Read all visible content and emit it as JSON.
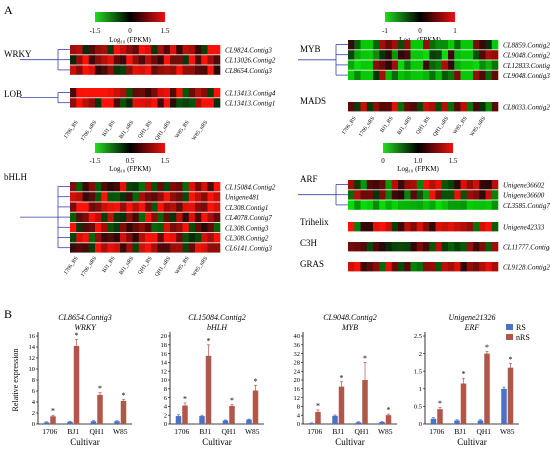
{
  "panel_a": {
    "label": "A",
    "x_labels": [
      "1706_RS",
      "1706_nRS",
      "BJ1_RS",
      "BJ1_nRS",
      "QH1_RS",
      "QH1_nRS",
      "W85_RS",
      "W85_nRS"
    ],
    "color_keys": [
      {
        "ticks": [
          "-1.5",
          "0",
          "1.5"
        ],
        "title": "Log₁₀ (FPKM)",
        "low": "#22cc22",
        "mid": "#000000",
        "high": "#ee1111"
      },
      {
        "ticks": [
          "-1",
          "0",
          "1"
        ],
        "title": "Log₁₀ (FPKM)",
        "low": "#22cc22",
        "mid": "#000000",
        "high": "#ee1111"
      },
      {
        "ticks": [
          "-1.5",
          "0.5",
          "1.5"
        ],
        "title": "Log₁₀ (FPKM)",
        "low": "#22cc22",
        "mid": "#000000",
        "high": "#ee1111"
      },
      {
        "ticks": [
          "0",
          "1.0",
          "1.5"
        ],
        "title": "Log₁₀ (FPKM)",
        "low": "#22cc22",
        "mid": "#000000",
        "high": "#ee1111"
      }
    ],
    "families": [
      {
        "name": "WRKY",
        "genes": [
          "CL9824.Contig3",
          "CL13026.Contig2",
          "CL8654.Contig3"
        ]
      },
      {
        "name": "LOB",
        "genes": [
          "CL13413.Contig4",
          "CL13413.Contig1"
        ]
      },
      {
        "name": "bHLH",
        "genes": [
          "CL15084.Contig2",
          "Unigene481",
          "CL308.Contig1",
          "CL4078.Contig7",
          "CL308.Contig3",
          "CL308.Contig2",
          "CL6141.Contig3"
        ]
      },
      {
        "name": "MYB",
        "genes": [
          "CL8859.Contig2",
          "CL9048.Contig2",
          "CL12833.Contig2",
          "CL9048.Contig3"
        ]
      },
      {
        "name": "MADS",
        "genes": [
          "CL8033.Contig2"
        ]
      },
      {
        "name": "ARF",
        "genes": [
          "Unigene36602",
          "Unigene36600",
          "CL3585.Contig7"
        ]
      },
      {
        "name": "Trihelix",
        "genes": [
          "Unigene42333"
        ]
      },
      {
        "name": "C3H",
        "genes": [
          "CL11777.Contig4"
        ]
      },
      {
        "name": "GRAS",
        "genes": [
          "CL9128.Contig2"
        ]
      }
    ]
  },
  "panel_b": {
    "label": "B",
    "y_axis_label": "Relative expression",
    "x_axis_label": "Cultivar",
    "legend": [
      "RS",
      "nRS"
    ],
    "colors": {
      "RS": "#4a72c4",
      "nRS": "#b0574a"
    },
    "significance_mark": "*"
  },
  "chart_data": [
    {
      "type": "bar",
      "title": "CL8654.Contig3",
      "subtitle": "WRKY",
      "categories": [
        "1706",
        "BJ1",
        "QH1",
        "W85"
      ],
      "series": [
        {
          "name": "RS",
          "values": [
            0.3,
            0.4,
            0.5,
            0.5
          ],
          "errors": [
            0.1,
            0.1,
            0.1,
            0.1
          ]
        },
        {
          "name": "nRS",
          "values": [
            1.4,
            14.2,
            5.3,
            4.2
          ],
          "errors": [
            0.2,
            1.2,
            0.4,
            0.3
          ]
        }
      ],
      "yticks": [
        0,
        2,
        4,
        6,
        8,
        10,
        12,
        14,
        16
      ],
      "ylim": [
        0,
        16
      ]
    },
    {
      "type": "bar",
      "title": "CL15084.Contig2",
      "subtitle": "bHLH",
      "categories": [
        "1706",
        "BJ1",
        "QH1",
        "W85"
      ],
      "series": [
        {
          "name": "RS",
          "values": [
            1.8,
            1.8,
            0.8,
            1.0
          ],
          "errors": [
            0.3,
            0.2,
            0.1,
            0.1
          ]
        },
        {
          "name": "nRS",
          "values": [
            4.2,
            15.5,
            4.1,
            7.6
          ],
          "errors": [
            0.6,
            2.5,
            0.3,
            1.2
          ]
        }
      ],
      "yticks": [
        0,
        2,
        4,
        6,
        8,
        10,
        12,
        14,
        16,
        18,
        20
      ],
      "ylim": [
        0,
        20
      ]
    },
    {
      "type": "bar",
      "title": "CL9048.Contig2",
      "subtitle": "MYB",
      "categories": [
        "1706",
        "BJ1",
        "QH1",
        "W85"
      ],
      "series": [
        {
          "name": "RS",
          "values": [
            0.4,
            3.7,
            0.8,
            0.9
          ],
          "errors": [
            0.1,
            0.4,
            0.2,
            0.2
          ]
        },
        {
          "name": "nRS",
          "values": [
            5.5,
            17.0,
            20.0,
            4.0
          ],
          "errors": [
            0.9,
            2.2,
            8.0,
            0.5
          ]
        }
      ],
      "yticks": [
        0,
        4,
        8,
        12,
        16,
        20,
        24,
        28,
        32,
        36,
        40
      ],
      "ylim": [
        0,
        40
      ]
    },
    {
      "type": "bar",
      "title": "Unigene21326",
      "subtitle": "ERF",
      "categories": [
        "1706",
        "BJ1",
        "QH1",
        "W85"
      ],
      "series": [
        {
          "name": "RS",
          "values": [
            0.15,
            0.1,
            0.1,
            1.0
          ],
          "errors": [
            0.03,
            0.02,
            0.02,
            0.05
          ]
        },
        {
          "name": "nRS",
          "values": [
            0.42,
            1.15,
            2.0,
            1.6
          ],
          "errors": [
            0.05,
            0.15,
            0.06,
            0.12
          ]
        }
      ],
      "yticks": [
        0,
        0.5,
        1,
        1.5,
        2,
        2.5
      ],
      "ylim": [
        0,
        2.5
      ]
    }
  ]
}
